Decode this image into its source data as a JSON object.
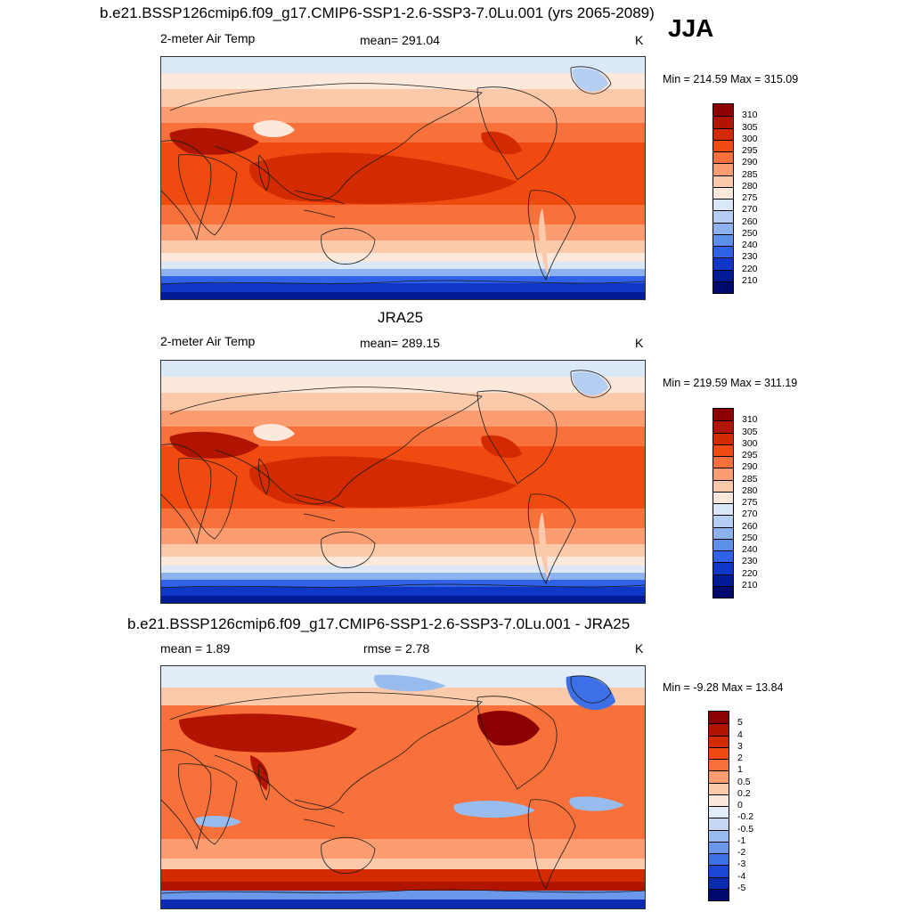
{
  "header": {
    "title": "b.e21.BSSP126cmip6.f09_g17.CMIP6-SSP1-2.6-SSP3-7.0Lu.001 (yrs 2065-2089)",
    "season": "JJA"
  },
  "panels": [
    {
      "id": "model",
      "title": "",
      "left_label": "2-meter Air Temp",
      "center_label": "mean= 291.04",
      "unit": "K",
      "minmax": "Min = 214.59 Max = 315.09",
      "palette": "temp",
      "levels": [
        "310",
        "305",
        "300",
        "295",
        "290",
        "285",
        "280",
        "275",
        "270",
        "260",
        "250",
        "240",
        "230",
        "220",
        "210"
      ]
    },
    {
      "id": "obs",
      "title": "JRA25",
      "left_label": "2-meter Air Temp",
      "center_label": "mean= 289.15",
      "unit": "K",
      "minmax": "Min = 219.59 Max = 311.19",
      "palette": "temp",
      "levels": [
        "310",
        "305",
        "300",
        "295",
        "290",
        "285",
        "280",
        "275",
        "270",
        "260",
        "250",
        "240",
        "230",
        "220",
        "210"
      ]
    },
    {
      "id": "diff",
      "title": "b.e21.BSSP126cmip6.f09_g17.CMIP6-SSP1-2.6-SSP3-7.0Lu.001 - JRA25",
      "left_label": "mean =   1.89",
      "center_label": "rmse =   2.78",
      "unit": "K",
      "minmax": "Min =  -9.28 Max =  13.84",
      "palette": "diff",
      "levels": [
        "5",
        "4",
        "3",
        "2",
        "1",
        "0.5",
        "0.2",
        "0",
        "-0.2",
        "-0.5",
        "-1",
        "-2",
        "-3",
        "-4",
        "-5"
      ]
    }
  ],
  "colors": {
    "temp": [
      "#8b0000",
      "#b11400",
      "#d42a00",
      "#f04a10",
      "#f8703a",
      "#fb9d70",
      "#fccaaa",
      "#fde8dc",
      "#dbe8f7",
      "#b4cff2",
      "#8cb3ef",
      "#5c8eeb",
      "#2f62e6",
      "#0f38c8",
      "#001b96",
      "#000a6e"
    ],
    "diff": [
      "#8b0000",
      "#b11400",
      "#d42a00",
      "#f04a10",
      "#f8703a",
      "#fb9d70",
      "#fccaaa",
      "#fde8dc",
      "#e3edf8",
      "#c4d8f3",
      "#99bcef",
      "#6b98eb",
      "#3d6fe6",
      "#1c47d6",
      "#0a2bb0",
      "#000a6e"
    ],
    "coast": "#1a1a1a"
  }
}
